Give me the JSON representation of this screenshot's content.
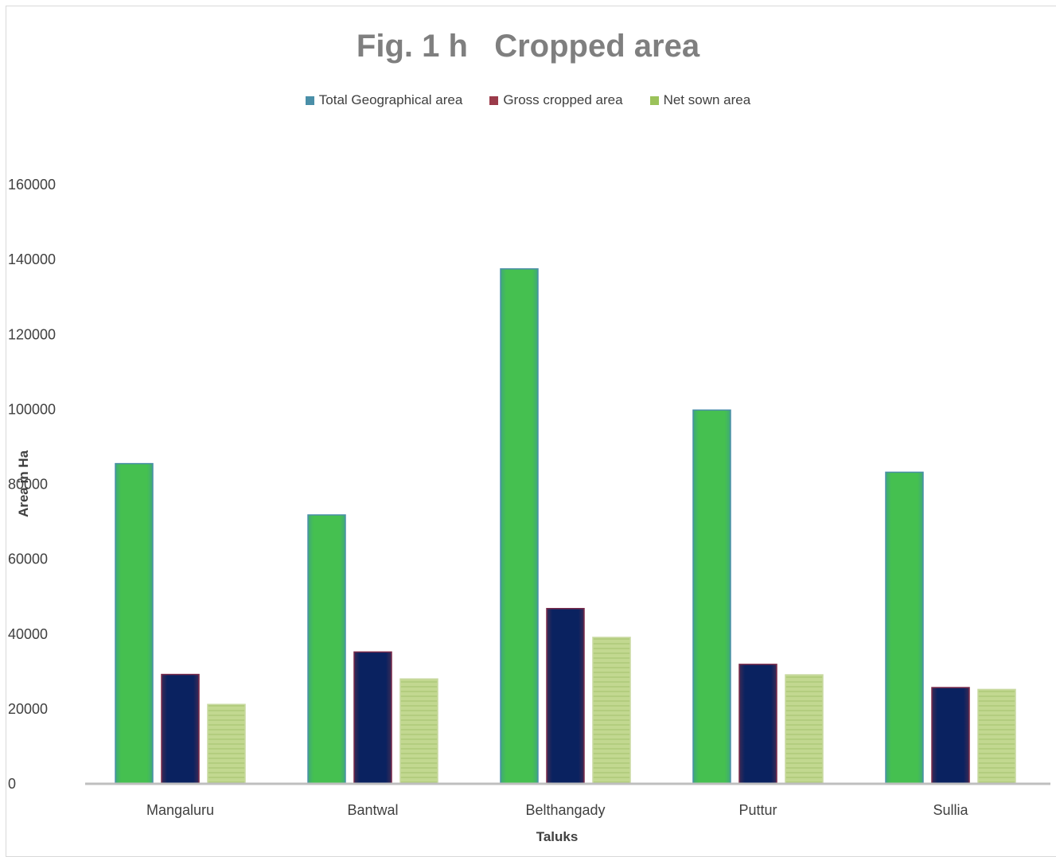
{
  "chart_data": {
    "type": "bar",
    "title": "Fig. 1 h   Cropped area",
    "xlabel": "Taluks",
    "ylabel": "Area in Ha",
    "categories": [
      "Mangaluru",
      "Bantwal",
      "Belthangady",
      "Puttur",
      "Sullia"
    ],
    "series": [
      {
        "name": "Total Geographical area",
        "legend_color": "#4a8fa8",
        "bar_color": "#45c050",
        "values": [
          85500,
          71800,
          137500,
          99800,
          83200
        ]
      },
      {
        "name": "Gross cropped area",
        "legend_color": "#9b3b4a",
        "bar_color": "#0a2260",
        "values": [
          29200,
          35200,
          46800,
          31900,
          25700
        ]
      },
      {
        "name": "Net sown area",
        "legend_color": "#9bc25a",
        "bar_color": "#c2d890",
        "values": [
          21200,
          28000,
          39100,
          29100,
          25200
        ]
      }
    ],
    "ylim": [
      0,
      160000
    ],
    "yticks": [
      0,
      20000,
      40000,
      60000,
      80000,
      100000,
      120000,
      140000,
      160000
    ],
    "grid": false,
    "legend_position": "top"
  }
}
